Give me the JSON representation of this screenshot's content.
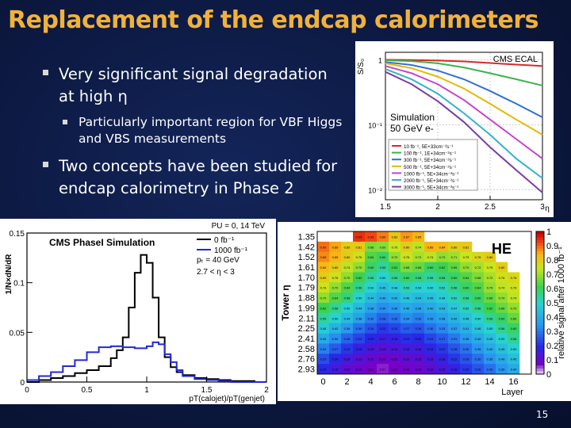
{
  "slide": {
    "title": "Replacement of the endcap calorimeters",
    "bullets": [
      {
        "text": "Very significant signal degradation at high η",
        "sub": "Particularly important region for VBF Higgs and VBS measurements"
      },
      {
        "text": "Two concepts have been studied for endcap calorimetry in Phase 2"
      }
    ],
    "page_number": "15"
  },
  "chart_data": [
    {
      "type": "line",
      "title": "CMS ECAL",
      "annotation": [
        "Simulation",
        "50 GeV e-"
      ],
      "ylabel": "S/S₀",
      "xlabel": "η",
      "x_ticks": [
        "1.5",
        "2",
        "2.5",
        "3"
      ],
      "y_ticks": [
        "10⁻²",
        "10⁻¹",
        "1"
      ],
      "yscale": "log",
      "xlim": [
        1.5,
        3.0
      ],
      "ylim": [
        0.007,
        1.3
      ],
      "legend": "bottom-left",
      "series": [
        {
          "name": "10 fb⁻¹, 5E+33cm⁻²s⁻¹",
          "color": "#d62a2a",
          "x": [
            1.5,
            1.75,
            2.0,
            2.25,
            2.5,
            2.75,
            3.0
          ],
          "y": [
            1.0,
            0.99,
            0.97,
            0.94,
            0.89,
            0.84,
            0.8
          ]
        },
        {
          "name": "100 fb⁻¹, 1E+34cm⁻²s⁻¹",
          "color": "#3cb44b",
          "x": [
            1.5,
            1.75,
            2.0,
            2.25,
            2.5,
            2.75,
            3.0
          ],
          "y": [
            0.98,
            0.95,
            0.88,
            0.76,
            0.62,
            0.5,
            0.4
          ]
        },
        {
          "name": "300 fb⁻¹, 5E+34cm⁻²s⁻¹",
          "color": "#2f6fd6",
          "x": [
            1.5,
            1.75,
            2.0,
            2.25,
            2.5,
            2.75,
            3.0
          ],
          "y": [
            0.92,
            0.83,
            0.68,
            0.5,
            0.33,
            0.21,
            0.13
          ]
        },
        {
          "name": "500 fb⁻¹, 5E+34cm⁻²s⁻¹",
          "color": "#e6b800",
          "x": [
            1.5,
            1.75,
            2.0,
            2.25,
            2.5,
            2.75,
            3.0
          ],
          "y": [
            0.88,
            0.74,
            0.55,
            0.36,
            0.21,
            0.12,
            0.07
          ]
        },
        {
          "name": "1000 fb⁻¹, 5E+34cm⁻²s⁻¹",
          "color": "#c844c8",
          "x": [
            1.5,
            1.75,
            2.0,
            2.25,
            2.5,
            2.75,
            3.0
          ],
          "y": [
            0.8,
            0.62,
            0.42,
            0.24,
            0.12,
            0.06,
            0.03
          ]
        },
        {
          "name": "2000 fb⁻¹, 5E+34cm⁻²s⁻¹",
          "color": "#31b3c9",
          "x": [
            1.5,
            1.75,
            2.0,
            2.25,
            2.5,
            2.75,
            3.0
          ],
          "y": [
            0.72,
            0.5,
            0.3,
            0.15,
            0.07,
            0.03,
            0.015
          ]
        },
        {
          "name": "3000 fb⁻¹, 5E+34cm⁻²s⁻¹",
          "color": "#7a3fa0",
          "x": [
            1.5,
            1.75,
            2.0,
            2.25,
            2.5,
            2.75,
            3.0
          ],
          "y": [
            0.65,
            0.42,
            0.23,
            0.11,
            0.045,
            0.02,
            0.009
          ]
        }
      ]
    },
    {
      "type": "line",
      "title": "CMS PhaseI Simulation",
      "header_right": "PU = 0, 14 TeV",
      "ylabel": "1/N×dN/dR",
      "xlabel": "pT(calojet)/pT(genjet)",
      "x_ticks": [
        "0",
        "0.5",
        "1",
        "1.5",
        "2"
      ],
      "y_ticks": [
        "0",
        "0.05",
        "0.1",
        "0.15"
      ],
      "xlim": [
        0,
        2
      ],
      "ylim": [
        0,
        0.15
      ],
      "legend": "top-right",
      "legend_extra": [
        "pₜ = 40 GeV",
        "2.7 < η < 3"
      ],
      "series": [
        {
          "name": "0 fb⁻¹",
          "color": "#000000",
          "x": [
            0.0,
            0.1,
            0.2,
            0.3,
            0.4,
            0.5,
            0.6,
            0.7,
            0.75,
            0.8,
            0.85,
            0.9,
            0.95,
            1.0,
            1.05,
            1.1,
            1.15,
            1.2,
            1.25,
            1.3,
            1.4,
            1.5,
            1.6,
            1.7,
            1.8,
            1.9,
            2.0
          ],
          "y": [
            0.0,
            0.002,
            0.004,
            0.006,
            0.009,
            0.012,
            0.016,
            0.024,
            0.032,
            0.045,
            0.075,
            0.11,
            0.128,
            0.12,
            0.085,
            0.045,
            0.025,
            0.015,
            0.01,
            0.007,
            0.004,
            0.003,
            0.002,
            0.001,
            0.001,
            0.0,
            0.0
          ]
        },
        {
          "name": "1000 fb⁻¹",
          "color": "#2228d6",
          "x": [
            0.0,
            0.1,
            0.2,
            0.3,
            0.4,
            0.5,
            0.6,
            0.7,
            0.8,
            0.9,
            1.0,
            1.05,
            1.1,
            1.15,
            1.2,
            1.25,
            1.3,
            1.4,
            1.5,
            1.6,
            1.7,
            1.8,
            1.9,
            2.0
          ],
          "y": [
            0.002,
            0.006,
            0.01,
            0.016,
            0.022,
            0.03,
            0.035,
            0.036,
            0.035,
            0.034,
            0.036,
            0.04,
            0.038,
            0.028,
            0.02,
            0.012,
            0.006,
            0.003,
            0.002,
            0.001,
            0.0,
            0.0,
            0.0,
            0.0
          ]
        }
      ]
    },
    {
      "type": "heatmap",
      "title": "HE",
      "ylabel": "Tower η",
      "xlabel": "Layer",
      "colorbar_label": "relative signal after 1000 fb⁻¹",
      "colorbar_ticks": [
        "0",
        "0.1",
        "0.2",
        "0.3",
        "0.4",
        "0.5",
        "0.6",
        "0.7",
        "0.8",
        "0.9",
        "1"
      ],
      "rows": [
        "1.35",
        "1.42",
        "1.52",
        "1.61",
        "1.70",
        "1.79",
        "1.88",
        "1.99",
        "2.11",
        "2.25",
        "2.41",
        "2.58",
        "2.76",
        "2.93"
      ],
      "cols": [
        "0",
        "1",
        "2",
        "3",
        "4",
        "5",
        "6",
        "7",
        "8",
        "9",
        "10",
        "11",
        "12",
        "13",
        "14",
        "15",
        "16",
        "17"
      ],
      "x_ticks": [
        "0",
        "2",
        "4",
        "6",
        "8",
        "10",
        "12",
        "14",
        "16"
      ],
      "values": [
        [
          null,
          null,
          null,
          0.95,
          0.93,
          0.89,
          0.82,
          0.87,
          0.85,
          null,
          null,
          null,
          null,
          null,
          null,
          null,
          null,
          null
        ],
        [
          0.9,
          0.86,
          0.8,
          0.81,
          0.68,
          0.69,
          0.75,
          0.8,
          0.74,
          0.85,
          0.84,
          0.8,
          0.81,
          null,
          null,
          null,
          null,
          null
        ],
        [
          0.88,
          0.85,
          0.8,
          0.76,
          0.64,
          0.6,
          0.7,
          0.76,
          0.72,
          0.74,
          0.7,
          0.71,
          0.75,
          0.78,
          0.8,
          null,
          null,
          null
        ],
        [
          0.84,
          0.8,
          0.74,
          0.7,
          0.6,
          0.55,
          0.62,
          0.68,
          0.66,
          0.6,
          0.62,
          0.65,
          0.7,
          0.72,
          0.75,
          0.8,
          null,
          null
        ],
        [
          0.8,
          0.76,
          0.7,
          0.62,
          0.55,
          0.5,
          0.56,
          0.6,
          0.58,
          0.55,
          0.58,
          0.6,
          0.64,
          0.68,
          0.72,
          0.76,
          0.78,
          null
        ],
        [
          0.76,
          0.7,
          0.64,
          0.56,
          0.5,
          0.45,
          0.48,
          0.53,
          0.5,
          0.5,
          0.52,
          0.56,
          0.6,
          0.64,
          0.7,
          0.74,
          0.76,
          null
        ],
        [
          0.7,
          0.64,
          0.58,
          0.5,
          0.44,
          0.4,
          0.42,
          0.46,
          0.44,
          0.45,
          0.48,
          0.52,
          0.56,
          0.6,
          0.66,
          0.7,
          0.74,
          null
        ],
        [
          0.62,
          0.56,
          0.5,
          0.44,
          0.38,
          0.34,
          0.36,
          0.4,
          0.38,
          0.4,
          0.43,
          0.47,
          0.52,
          0.56,
          0.62,
          0.66,
          0.7,
          null
        ],
        [
          0.55,
          0.5,
          0.44,
          0.38,
          0.32,
          0.28,
          0.3,
          0.34,
          0.32,
          0.35,
          0.38,
          0.42,
          0.46,
          0.5,
          0.56,
          0.6,
          0.66,
          null
        ],
        [
          0.48,
          0.42,
          0.36,
          0.3,
          0.26,
          0.22,
          0.24,
          0.27,
          0.26,
          0.3,
          0.33,
          0.37,
          0.41,
          0.46,
          0.5,
          0.56,
          0.6,
          null
        ],
        [
          0.4,
          0.34,
          0.28,
          0.24,
          0.2,
          0.17,
          0.18,
          0.21,
          0.2,
          0.24,
          0.27,
          0.31,
          0.36,
          0.4,
          0.45,
          0.5,
          0.56,
          null
        ],
        [
          0.32,
          0.27,
          0.22,
          0.18,
          0.15,
          0.13,
          0.14,
          0.16,
          0.16,
          0.19,
          0.22,
          0.26,
          0.3,
          0.35,
          0.4,
          0.45,
          0.5,
          null
        ],
        [
          0.25,
          0.2,
          0.16,
          0.13,
          0.11,
          0.09,
          0.1,
          0.12,
          0.12,
          0.15,
          0.18,
          0.22,
          0.26,
          0.3,
          0.35,
          0.4,
          0.45,
          null
        ],
        [
          0.2,
          0.16,
          0.12,
          0.1,
          0.08,
          0.07,
          0.08,
          0.09,
          0.1,
          0.12,
          0.15,
          0.18,
          0.22,
          0.26,
          0.3,
          0.35,
          0.4,
          null
        ]
      ]
    }
  ]
}
